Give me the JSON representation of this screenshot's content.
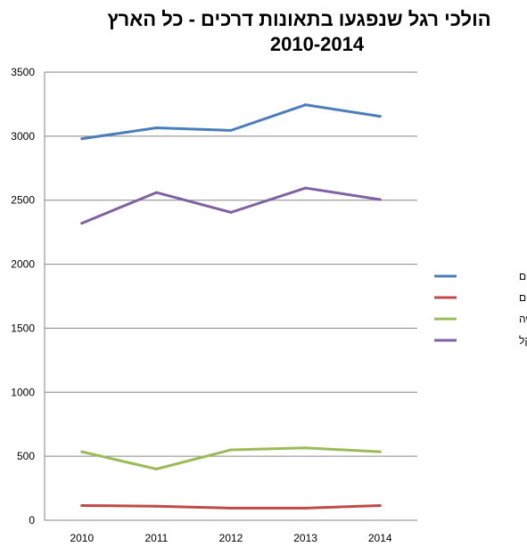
{
  "chart_data": {
    "type": "line",
    "title_line1": "הולכי רגל שנפגעו בתאונות דרכים -  כל הארץ",
    "title_line2": "2010-2014",
    "categories": [
      "2010",
      "2011",
      "2012",
      "2013",
      "2014"
    ],
    "y_ticks": [
      "0",
      "500",
      "1000",
      "1500",
      "2000",
      "2500",
      "3000",
      "3500"
    ],
    "ylim": [
      0,
      3500
    ],
    "grid": true,
    "legend_position": "right",
    "series": [
      {
        "name": "סה\"כ נפגעים",
        "color": "#4A7EBB",
        "values": [
          2980,
          3065,
          3045,
          3245,
          3155
        ]
      },
      {
        "name": "הרוגים",
        "color": "#BE4B48",
        "values": [
          115,
          110,
          95,
          95,
          115
        ]
      },
      {
        "name": "פצועים קשה",
        "color": "#9BBB59",
        "values": [
          535,
          400,
          550,
          565,
          535
        ]
      },
      {
        "name": "פצועים קל",
        "color": "#7E62A1",
        "values": [
          2320,
          2560,
          2405,
          2595,
          2505
        ]
      }
    ]
  }
}
